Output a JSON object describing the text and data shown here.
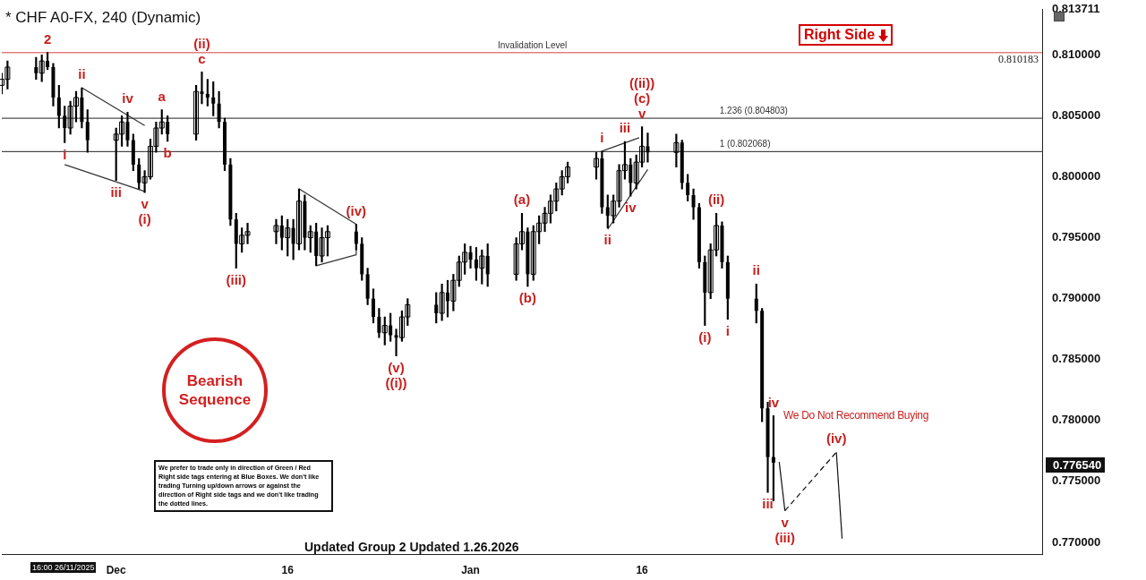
{
  "chart_data": {
    "type": "candlestick",
    "title": "* CHF A0-FX, 240 (Dynamic)",
    "color": "#000000",
    "x": [
      "2025-11-21T00:00",
      "2025-11-21T12:00",
      "2025-11-24T00:00",
      "2025-11-24T12:00",
      "2025-11-25T00:00",
      "2025-11-25T12:00",
      "2025-11-26T00:00",
      "2025-11-26T12:00",
      "2025-11-27T00:00",
      "2025-11-27T12:00",
      "2025-11-28T00:00",
      "2025-11-28T12:00",
      "2025-12-01T00:00",
      "2025-12-01T12:00",
      "2025-12-02T00:00",
      "2025-12-02T12:00",
      "2025-12-03T00:00",
      "2025-12-03T12:00",
      "2025-12-04T00:00",
      "2025-12-04T12:00",
      "2025-12-05T00:00",
      "2025-12-05T12:00",
      "2025-12-08T00:00",
      "2025-12-08T12:00",
      "2025-12-09T00:00",
      "2025-12-09T12:00",
      "2025-12-10T00:00",
      "2025-12-10T12:00",
      "2025-12-11T00:00",
      "2025-12-11T12:00",
      "2025-12-12T00:00",
      "2025-12-12T12:00",
      "2025-12-15T00:00",
      "2025-12-15T12:00",
      "2025-12-16T00:00",
      "2025-12-16T12:00",
      "2025-12-17T00:00",
      "2025-12-17T12:00",
      "2025-12-18T00:00",
      "2025-12-18T12:00",
      "2025-12-19T00:00",
      "2025-12-19T12:00",
      "2025-12-22T00:00",
      "2025-12-22T12:00",
      "2025-12-23T00:00",
      "2025-12-23T12:00",
      "2025-12-24T00:00",
      "2025-12-24T12:00",
      "2025-12-25T00:00",
      "2025-12-25T12:00",
      "2025-12-26T00:00",
      "2025-12-26T12:00",
      "2025-12-29T00:00",
      "2025-12-29T12:00",
      "2025-12-30T00:00",
      "2025-12-30T12:00",
      "2025-12-31T00:00",
      "2025-12-31T12:00",
      "2026-01-01T00:00",
      "2026-01-01T12:00",
      "2026-01-02T00:00",
      "2026-01-02T12:00",
      "2026-01-05T00:00",
      "2026-01-05T12:00",
      "2026-01-06T00:00",
      "2026-01-06T12:00",
      "2026-01-07T00:00",
      "2026-01-07T12:00",
      "2026-01-08T00:00",
      "2026-01-08T12:00",
      "2026-01-09T00:00",
      "2026-01-09T12:00",
      "2026-01-12T00:00",
      "2026-01-12T12:00",
      "2026-01-13T00:00",
      "2026-01-13T12:00",
      "2026-01-14T00:00",
      "2026-01-14T12:00",
      "2026-01-15T00:00",
      "2026-01-15T12:00",
      "2026-01-16T00:00",
      "2026-01-16T12:00",
      "2026-01-19T00:00",
      "2026-01-19T12:00",
      "2026-01-20T00:00",
      "2026-01-20T12:00",
      "2026-01-21T00:00",
      "2026-01-21T12:00",
      "2026-01-22T00:00",
      "2026-01-22T12:00",
      "2026-01-23T00:00",
      "2026-01-23T12:00",
      "2026-01-26T00:00",
      "2026-01-26T12:00",
      "2026-01-27T00:00",
      "2026-01-27T12:00"
    ],
    "ohlc": [
      [
        0.8075,
        0.8085,
        0.8068,
        0.808
      ],
      [
        0.808,
        0.8095,
        0.8072,
        0.809
      ],
      [
        0.809,
        0.8098,
        0.808,
        0.8085
      ],
      [
        0.8085,
        0.81,
        0.8078,
        0.8095
      ],
      [
        0.8095,
        0.8102,
        0.8088,
        0.809
      ],
      [
        0.809,
        0.8093,
        0.8058,
        0.8065
      ],
      [
        0.8065,
        0.8075,
        0.804,
        0.805
      ],
      [
        0.805,
        0.8058,
        0.8028,
        0.804
      ],
      [
        0.804,
        0.8062,
        0.8035,
        0.8058
      ],
      [
        0.8058,
        0.807,
        0.8045,
        0.8065
      ],
      [
        0.8065,
        0.8073,
        0.804,
        0.8045
      ],
      [
        0.8045,
        0.8055,
        0.802,
        0.803
      ],
      [
        0.803,
        0.804,
        0.7997,
        0.8035
      ],
      [
        0.8035,
        0.805,
        0.8025,
        0.8045
      ],
      [
        0.8045,
        0.8053,
        0.8025,
        0.803
      ],
      [
        0.803,
        0.8035,
        0.8005,
        0.801
      ],
      [
        0.801,
        0.8015,
        0.799,
        0.7995
      ],
      [
        0.7995,
        0.8005,
        0.7987,
        0.8
      ],
      [
        0.8,
        0.8031,
        0.7998,
        0.8025
      ],
      [
        0.8025,
        0.8045,
        0.802,
        0.804
      ],
      [
        0.804,
        0.8055,
        0.8035,
        0.8045
      ],
      [
        0.8045,
        0.805,
        0.8029,
        0.8035
      ],
      [
        0.8035,
        0.8075,
        0.803,
        0.807
      ],
      [
        0.807,
        0.8086,
        0.806,
        0.8068
      ],
      [
        0.8068,
        0.808,
        0.8058,
        0.8065
      ],
      [
        0.8065,
        0.8078,
        0.805,
        0.806
      ],
      [
        0.806,
        0.807,
        0.804,
        0.8045
      ],
      [
        0.8045,
        0.8048,
        0.8005,
        0.801
      ],
      [
        0.801,
        0.8015,
        0.796,
        0.7965
      ],
      [
        0.7965,
        0.797,
        0.7925,
        0.7945
      ],
      [
        0.7945,
        0.7958,
        0.7938,
        0.7952
      ],
      [
        0.7952,
        0.7962,
        0.7945,
        0.7955
      ],
      [
        0.7955,
        0.7965,
        0.7945,
        0.796
      ],
      [
        0.796,
        0.7968,
        0.794,
        0.795
      ],
      [
        0.795,
        0.7965,
        0.7935,
        0.7958
      ],
      [
        0.7958,
        0.7965,
        0.7932,
        0.7945
      ],
      [
        0.7945,
        0.799,
        0.794,
        0.798
      ],
      [
        0.798,
        0.7985,
        0.794,
        0.795
      ],
      [
        0.795,
        0.796,
        0.7938,
        0.7955
      ],
      [
        0.7955,
        0.7962,
        0.7927,
        0.7935
      ],
      [
        0.7935,
        0.7958,
        0.793,
        0.795
      ],
      [
        0.795,
        0.796,
        0.7935,
        0.7955
      ],
      [
        0.7955,
        0.7961,
        0.794,
        0.7945
      ],
      [
        0.7945,
        0.795,
        0.7915,
        0.792
      ],
      [
        0.792,
        0.7925,
        0.7895,
        0.79
      ],
      [
        0.79,
        0.7908,
        0.788,
        0.7885
      ],
      [
        0.7885,
        0.7892,
        0.7868,
        0.7872
      ],
      [
        0.7872,
        0.7885,
        0.7862,
        0.7878
      ],
      [
        0.7878,
        0.7888,
        0.7865,
        0.787
      ],
      [
        0.787,
        0.7875,
        0.7853,
        0.7868
      ],
      [
        0.7868,
        0.789,
        0.7865,
        0.7885
      ],
      [
        0.7885,
        0.79,
        0.7878,
        0.7895
      ],
      [
        0.7895,
        0.7905,
        0.788,
        0.7888
      ],
      [
        0.7888,
        0.7912,
        0.7882,
        0.7905
      ],
      [
        0.7905,
        0.7915,
        0.7885,
        0.7898
      ],
      [
        0.7898,
        0.792,
        0.789,
        0.7915
      ],
      [
        0.7915,
        0.7935,
        0.791,
        0.793
      ],
      [
        0.793,
        0.7945,
        0.792,
        0.7938
      ],
      [
        0.7938,
        0.7943,
        0.7925,
        0.7932
      ],
      [
        0.7932,
        0.7942,
        0.7915,
        0.7925
      ],
      [
        0.7925,
        0.794,
        0.7912,
        0.7935
      ],
      [
        0.7935,
        0.7945,
        0.791,
        0.792
      ],
      [
        0.792,
        0.795,
        0.7915,
        0.7945
      ],
      [
        0.7945,
        0.797,
        0.794,
        0.7955
      ],
      [
        0.7955,
        0.7958,
        0.791,
        0.792
      ],
      [
        0.792,
        0.796,
        0.7915,
        0.7955
      ],
      [
        0.7955,
        0.7968,
        0.7945,
        0.7962
      ],
      [
        0.7962,
        0.7975,
        0.7955,
        0.797
      ],
      [
        0.797,
        0.7985,
        0.7962,
        0.798
      ],
      [
        0.798,
        0.7995,
        0.7972,
        0.799
      ],
      [
        0.799,
        0.8005,
        0.7985,
        0.8
      ],
      [
        0.8,
        0.8012,
        0.7995,
        0.8008
      ],
      [
        0.8008,
        0.802,
        0.7998,
        0.8015
      ],
      [
        0.8015,
        0.8021,
        0.797,
        0.7975
      ],
      [
        0.7975,
        0.7985,
        0.7958,
        0.7968
      ],
      [
        0.7968,
        0.7985,
        0.7962,
        0.798
      ],
      [
        0.798,
        0.801,
        0.7975,
        0.8005
      ],
      [
        0.8005,
        0.8029,
        0.7998,
        0.801
      ],
      [
        0.801,
        0.8015,
        0.7984,
        0.7995
      ],
      [
        0.7995,
        0.8018,
        0.799,
        0.8012
      ],
      [
        0.8012,
        0.8041,
        0.8008,
        0.8025
      ],
      [
        0.8025,
        0.8036,
        0.8012,
        0.802
      ],
      [
        0.802,
        0.8035,
        0.8008,
        0.8028
      ],
      [
        0.8028,
        0.803,
        0.799,
        0.7995
      ],
      [
        0.7995,
        0.8002,
        0.798,
        0.7985
      ],
      [
        0.7985,
        0.799,
        0.7965,
        0.7975
      ],
      [
        0.7975,
        0.7978,
        0.7925,
        0.793
      ],
      [
        0.793,
        0.7935,
        0.7878,
        0.7905
      ],
      [
        0.7905,
        0.7945,
        0.79,
        0.794
      ],
      [
        0.794,
        0.797,
        0.7935,
        0.796
      ],
      [
        0.796,
        0.7963,
        0.7925,
        0.793
      ],
      [
        0.793,
        0.7935,
        0.7883,
        0.79
      ],
      [
        0.79,
        0.7912,
        0.788,
        0.789
      ],
      [
        0.789,
        0.7892,
        0.7799,
        0.781
      ],
      [
        0.781,
        0.7815,
        0.7741,
        0.777
      ],
      [
        0.777,
        0.7804,
        0.7734,
        0.77654
      ]
    ],
    "series": [
      {
        "type": "line",
        "color": "#333333",
        "x": [
          "2025-11-28T00:00",
          "2025-12-03T12:00"
        ],
        "values": [
          0.8073,
          0.8042
        ]
      },
      {
        "type": "line",
        "color": "#333333",
        "x": [
          "2025-11-26T12:00",
          "2025-12-03T12:00"
        ],
        "values": [
          0.801,
          0.7988
        ]
      },
      {
        "type": "line",
        "color": "#333333",
        "x": [
          "2025-12-17T00:00",
          "2025-12-22T00:00"
        ],
        "values": [
          0.799,
          0.7961
        ]
      },
      {
        "type": "line",
        "color": "#333333",
        "x": [
          "2025-12-18T12:00",
          "2025-12-22T00:00"
        ],
        "values": [
          0.7927,
          0.7936
        ]
      },
      {
        "type": "line",
        "color": "#333333",
        "x": [
          "2025-12-22T00:00",
          "2025-12-22T00:00"
        ],
        "values": [
          0.7961,
          0.7936
        ]
      },
      {
        "type": "line",
        "color": "#333333",
        "x": [
          "2026-01-12T12:00",
          "2026-01-15T18:00"
        ],
        "values": [
          0.8021,
          0.8032
        ]
      },
      {
        "type": "line",
        "color": "#333333",
        "x": [
          "2026-01-13T00:00",
          "2026-01-16T12:00"
        ],
        "values": [
          0.7957,
          0.8006
        ]
      },
      {
        "type": "line",
        "color": "#111111",
        "x": [
          "2026-01-28T00:00",
          "2026-01-28T12:00"
        ],
        "values": [
          0.7766,
          0.7726
        ]
      },
      {
        "type": "line",
        "color": "#111111",
        "line_style": "dashed",
        "x": [
          "2026-01-28T12:00",
          "2026-02-02T00:00"
        ],
        "values": [
          0.7726,
          0.7774
        ]
      },
      {
        "type": "line",
        "color": "#111111",
        "x": [
          "2026-02-02T00:00",
          "2026-02-02T12:00"
        ],
        "values": [
          0.7774,
          0.7703
        ]
      }
    ],
    "marker": "none",
    "xlim": [
      "2025-11-21T00:00",
      "2026-02-20T00:00"
    ],
    "xticks": [
      {
        "value": "2025-12-01T00:00",
        "label": "Dec"
      },
      {
        "value": "2025-12-16T00:00",
        "label": "16"
      },
      {
        "value": "2026-01-01T00:00",
        "label": "Jan"
      },
      {
        "value": "2026-01-16T00:00",
        "label": "16"
      }
    ],
    "ylim": [
      0.769,
      0.813711
    ],
    "yticks": [
      {
        "value": 0.77,
        "label": "0.770000"
      },
      {
        "value": 0.775,
        "label": "0.775000"
      },
      {
        "value": 0.78,
        "label": "0.780000"
      },
      {
        "value": 0.785,
        "label": "0.785000"
      },
      {
        "value": 0.79,
        "label": "0.790000"
      },
      {
        "value": 0.795,
        "label": "0.795000"
      },
      {
        "value": 0.8,
        "label": "0.800000"
      },
      {
        "value": 0.805,
        "label": "0.805000"
      },
      {
        "value": 0.81,
        "label": "0.810000"
      },
      {
        "value": 0.813711,
        "label": "0.813711"
      }
    ],
    "ref_lines": [
      {
        "axis": "y",
        "value": 0.810183,
        "label": "Invalidation Level",
        "color": "#d04040"
      },
      {
        "axis": "y",
        "value": 0.804803,
        "label": "1.236 (0.804803)",
        "color": "#222222"
      },
      {
        "axis": "y",
        "value": 0.802068,
        "label": "1 (0.802068)",
        "color": "#222222"
      }
    ],
    "annotations": [
      "Right Side",
      "Bearish Sequence",
      "We prefer to trade only in direction of Green / Red Right side tags entering at Blue Boxes. We don't like trading Turning up/down arrows or against the direction of Right side tags and we don't like trading the dotted lines.",
      "We Do Not Recommend Buying",
      "Updated Group 2 Updated 1.26.2026",
      "16:00 26/11/2025",
      {
        "text": "0.810183",
        "y": 0.810183
      },
      "0.776540",
      {
        "text": "2",
        "x": "2025-11-25T00:00",
        "y": 0.8102
      },
      {
        "text": "i",
        "x": "2025-11-26T12:00",
        "y": 0.8028
      },
      {
        "text": "ii",
        "x": "2025-11-28T00:00",
        "y": 0.8073
      },
      {
        "text": "iii",
        "x": "2025-12-01T00:00",
        "y": 0.7997
      },
      {
        "text": "iv",
        "x": "2025-12-02T00:00",
        "y": 0.8053
      },
      {
        "text": "v",
        "x": "2025-12-03T12:00",
        "y": 0.7987
      },
      {
        "text": "(i)",
        "x": "2025-12-03T12:00",
        "y": 0.7987
      },
      {
        "text": "a",
        "x": "2025-12-05T00:00",
        "y": 0.8055
      },
      {
        "text": "b",
        "x": "2025-12-05T12:00",
        "y": 0.8029
      },
      {
        "text": "c",
        "x": "2025-12-08T12:00",
        "y": 0.8086
      },
      {
        "text": "(ii)",
        "x": "2025-12-08T12:00",
        "y": 0.8086
      },
      {
        "text": "(iii)",
        "x": "2025-12-11T12:00",
        "y": 0.7925
      },
      {
        "text": "(iv)",
        "x": "2025-12-22T00:00",
        "y": 0.7961
      },
      {
        "text": "(v)",
        "x": "2025-12-25T12:00",
        "y": 0.7853
      },
      {
        "text": "((i))",
        "x": "2025-12-25T12:00",
        "y": 0.7853
      },
      {
        "text": "(a)",
        "x": "2026-01-05T12:00",
        "y": 0.797
      },
      {
        "text": "(b)",
        "x": "2026-01-06T00:00",
        "y": 0.791
      },
      {
        "text": "i",
        "x": "2026-01-12T12:00",
        "y": 0.8021
      },
      {
        "text": "ii",
        "x": "2026-01-13T00:00",
        "y": 0.7958
      },
      {
        "text": "iii",
        "x": "2026-01-14T12:00",
        "y": 0.8029
      },
      {
        "text": "iv",
        "x": "2026-01-15T00:00",
        "y": 0.7984
      },
      {
        "text": "v",
        "x": "2026-01-16T00:00",
        "y": 0.8041
      },
      {
        "text": "(c)",
        "x": "2026-01-16T00:00",
        "y": 0.8041
      },
      {
        "text": "((ii))",
        "x": "2026-01-16T00:00",
        "y": 0.8041
      },
      {
        "text": "(i)",
        "x": "2026-01-21T12:00",
        "y": 0.7878
      },
      {
        "text": "(ii)",
        "x": "2026-01-22T12:00",
        "y": 0.797
      },
      {
        "text": "i",
        "x": "2026-01-23T12:00",
        "y": 0.7883
      },
      {
        "text": "ii",
        "x": "2026-01-26T00:00",
        "y": 0.7912
      },
      {
        "text": "iii",
        "x": "2026-01-27T00:00",
        "y": 0.7741
      },
      {
        "text": "iv",
        "x": "2026-01-27T12:00",
        "y": 0.7804
      },
      {
        "text": "v",
        "x": "2026-01-28T12:00",
        "y": 0.7726
      },
      {
        "text": "(iii)",
        "x": "2026-01-28T12:00",
        "y": 0.7726
      },
      {
        "text": "(iv)",
        "x": "2026-02-02T00:00",
        "y": 0.7774
      }
    ]
  }
}
